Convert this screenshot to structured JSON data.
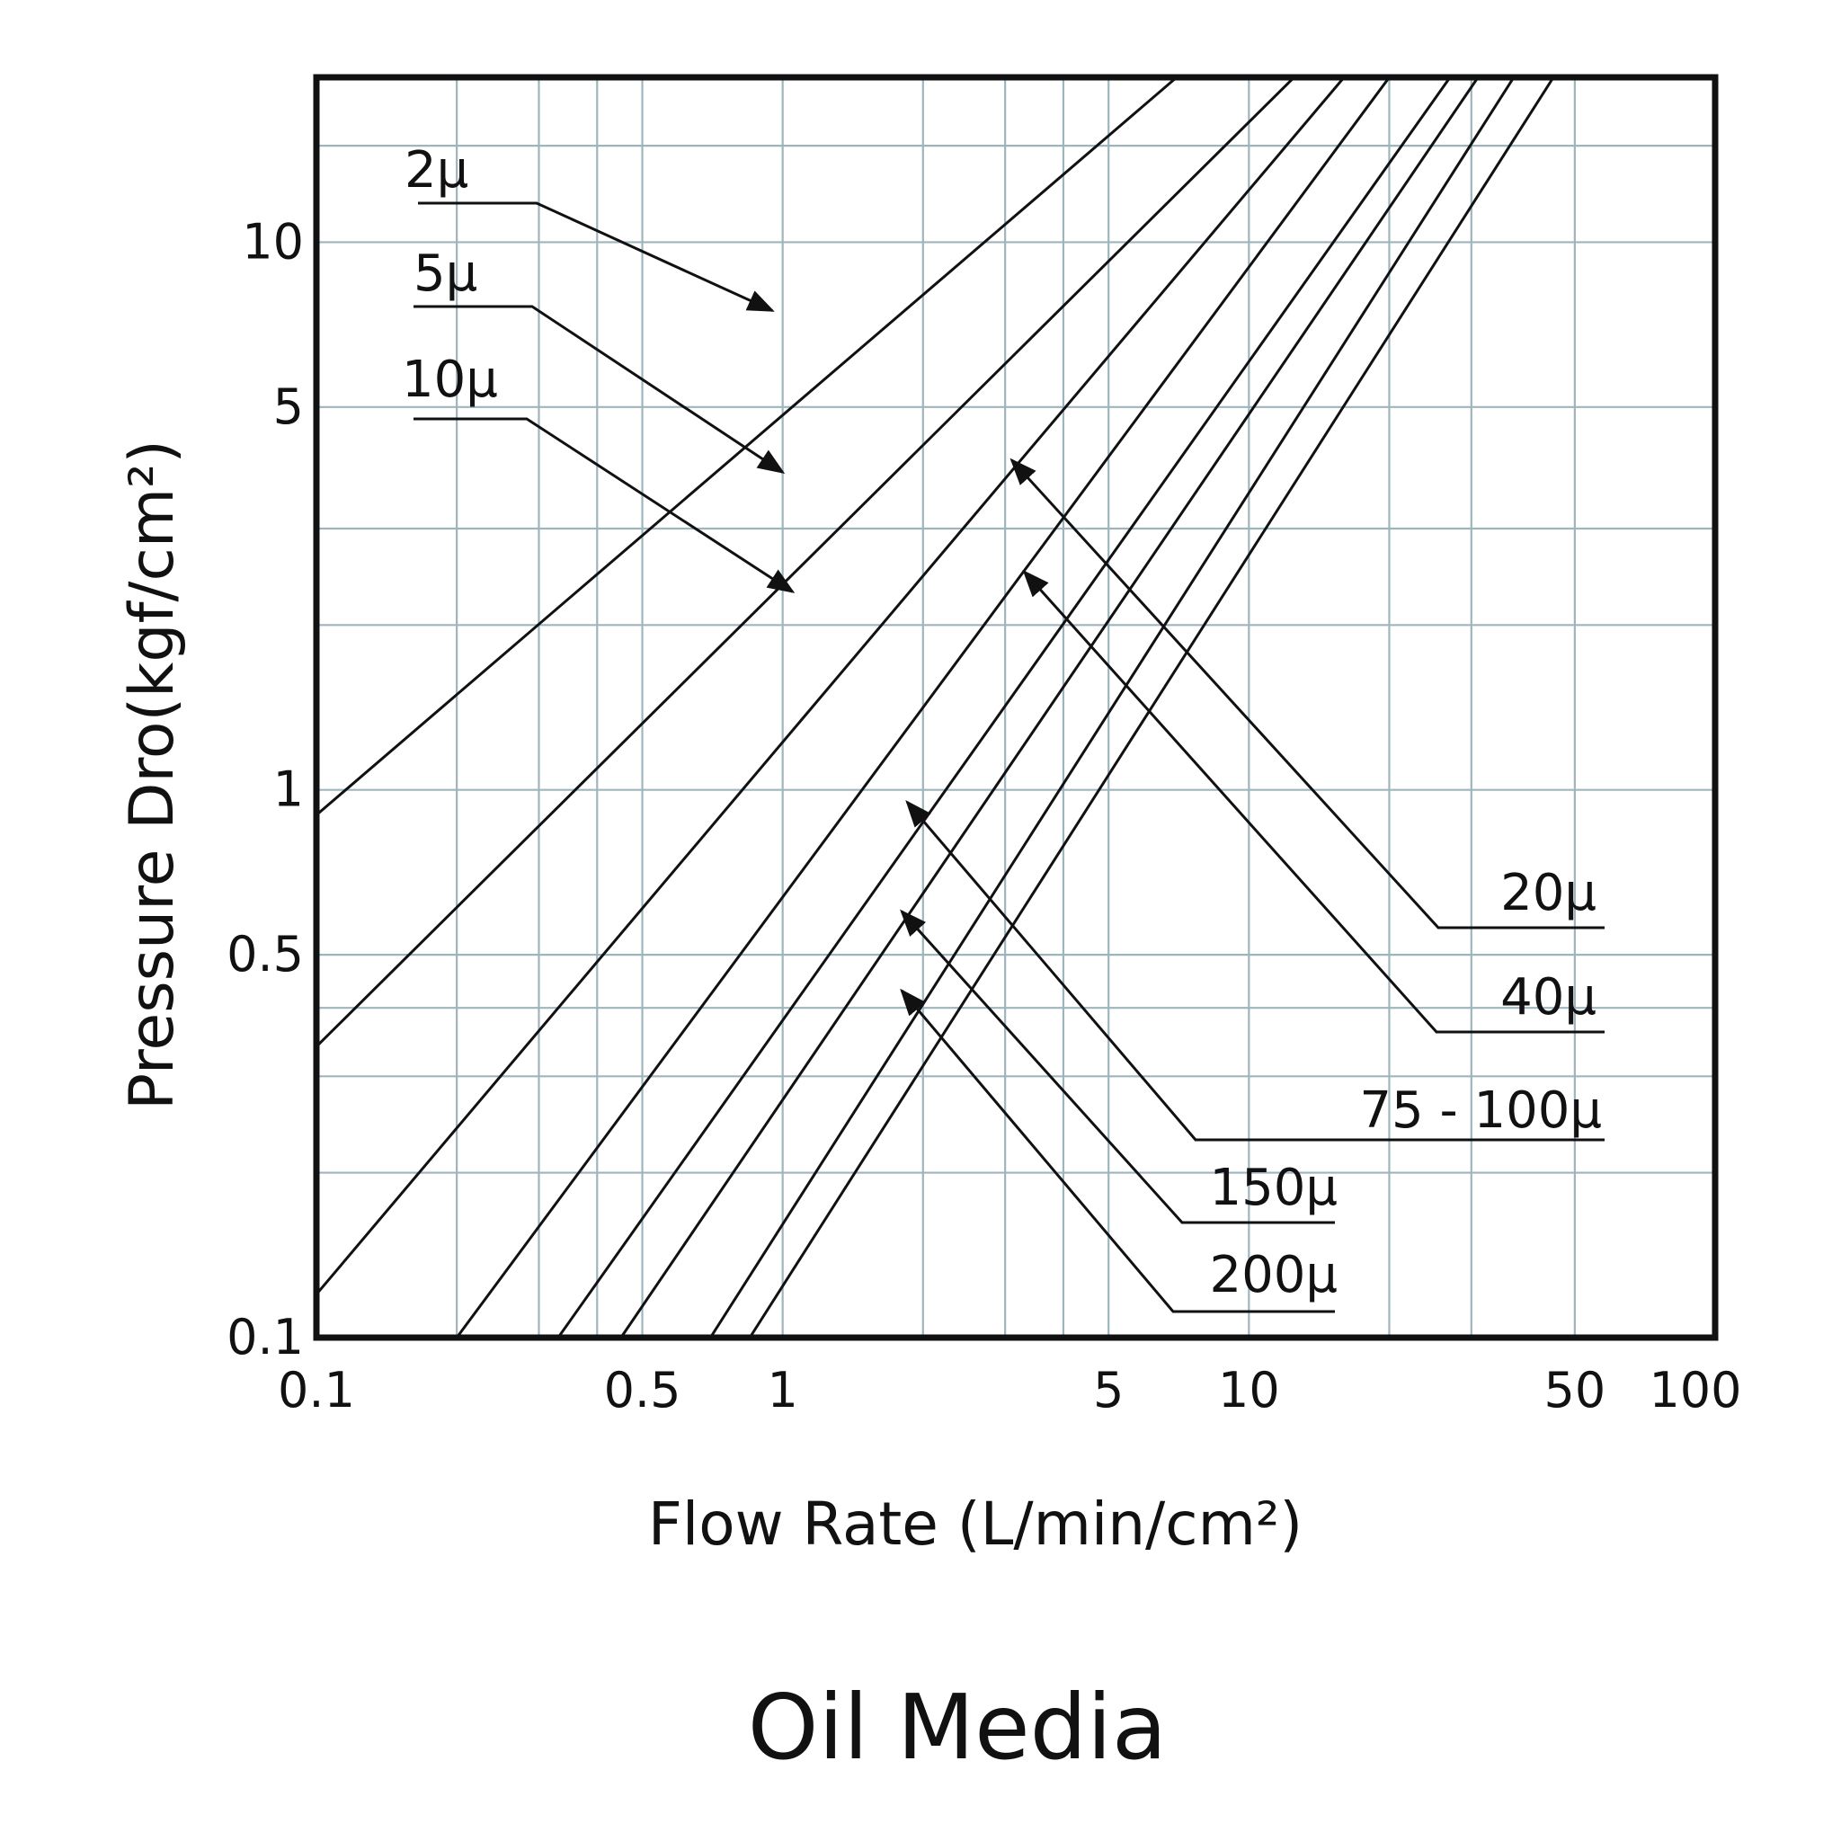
{
  "chart_data": {
    "type": "line",
    "title": "Oil Media",
    "xlabel": "Flow Rate (L/min/cm²)",
    "ylabel": "Pressure Dro(kgf/cm²)",
    "x_scale": "log",
    "y_scale": "log",
    "xlim": [
      0.1,
      100
    ],
    "ylim": [
      0.1,
      20
    ],
    "grid": true,
    "x_ticks": [
      {
        "value": 0.1,
        "label": "0.1"
      },
      {
        "value": 0.5,
        "label": "0.5"
      },
      {
        "value": 1,
        "label": "1"
      },
      {
        "value": 5,
        "label": "5"
      },
      {
        "value": 10,
        "label": "10"
      },
      {
        "value": 50,
        "label": "50"
      },
      {
        "value": 100,
        "label": "100"
      }
    ],
    "y_ticks": [
      {
        "value": 0.1,
        "label": "0.1"
      },
      {
        "value": 0.5,
        "label": "0.5"
      },
      {
        "value": 1,
        "label": "1"
      },
      {
        "value": 5,
        "label": "5"
      },
      {
        "value": 10,
        "label": "10"
      }
    ],
    "x_grid": [
      0.2,
      0.3,
      0.4,
      0.5,
      1,
      2,
      3,
      4,
      5,
      10,
      20,
      30,
      50
    ],
    "y_grid": [
      0.2,
      0.3,
      0.4,
      0.5,
      1,
      2,
      3,
      5,
      10,
      15
    ],
    "series": [
      {
        "name": "2μ",
        "points": [
          [
            0.1,
            0.9
          ],
          [
            7.0,
            20.0
          ]
        ]
      },
      {
        "name": "5μ",
        "points": [
          [
            0.1,
            0.34
          ],
          [
            12.5,
            20.0
          ]
        ]
      },
      {
        "name": "10μ",
        "points": [
          [
            0.1,
            0.12
          ],
          [
            16.0,
            20.0
          ]
        ]
      },
      {
        "name": "20μ",
        "points": [
          [
            0.2,
            0.1
          ],
          [
            20.0,
            20.0
          ]
        ]
      },
      {
        "name": "40μ",
        "points": [
          [
            0.33,
            0.1
          ],
          [
            27.0,
            20.0
          ]
        ]
      },
      {
        "name": "75 - 100μ",
        "points": [
          [
            0.45,
            0.1
          ],
          [
            31.0,
            20.0
          ]
        ]
      },
      {
        "name": "150μ",
        "points": [
          [
            0.7,
            0.1
          ],
          [
            37.0,
            20.0
          ]
        ]
      },
      {
        "name": "200μ",
        "points": [
          [
            0.85,
            0.1
          ],
          [
            45.0,
            20.0
          ]
        ]
      }
    ],
    "annotations": [
      {
        "text": "2μ",
        "target": [
          0.95,
          7.5
        ]
      },
      {
        "text": "5μ",
        "target": [
          1.0,
          3.8
        ]
      },
      {
        "text": "10μ",
        "target": [
          1.05,
          2.3
        ]
      },
      {
        "text": "20μ",
        "target": [
          3.1,
          4.0
        ]
      },
      {
        "text": "40μ",
        "target": [
          3.3,
          2.5
        ]
      },
      {
        "text": "75 - 100μ",
        "target": [
          1.85,
          0.95
        ]
      },
      {
        "text": "150μ",
        "target": [
          1.8,
          0.6
        ]
      },
      {
        "text": "200μ",
        "target": [
          1.8,
          0.43
        ]
      }
    ]
  }
}
